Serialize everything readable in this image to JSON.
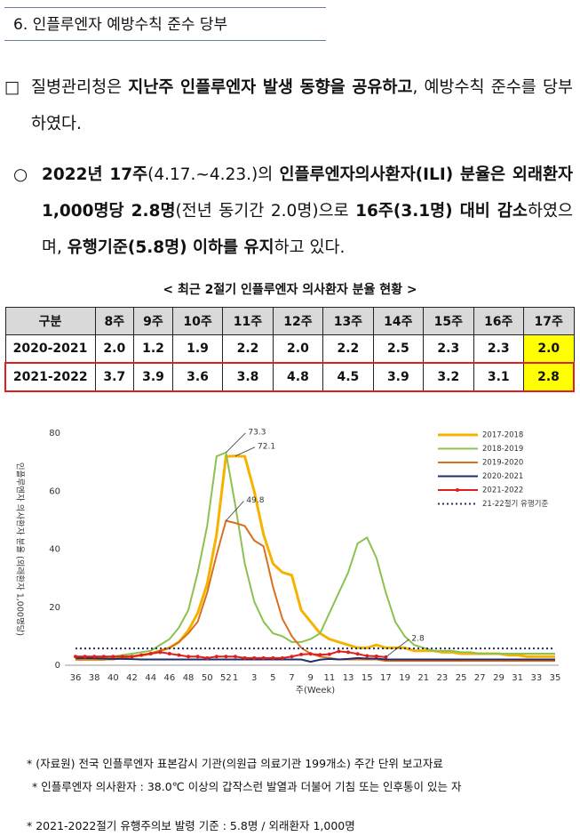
{
  "header": {
    "title": "6. 인플루엔자 예방수칙 준수 당부"
  },
  "paragraphs": [
    {
      "bullet": "□",
      "runs": [
        {
          "text": "질병관리청은 "
        },
        {
          "text": "지난주 인플루엔자 발생 동향을 공유하고",
          "bold": true
        },
        {
          "text": ", 예방수칙 준수를 당부하였다."
        }
      ]
    },
    {
      "bullet": "○",
      "runs": [
        {
          "text": "2022년 17주",
          "bold": true
        },
        {
          "text": "(4.17.~4.23.)"
        },
        {
          "text": "의 "
        },
        {
          "text": "인플루엔자의사환자(ILI) 분율은 외래환자 1,000명당 2.8명",
          "bold": true
        },
        {
          "text": "(전년 동기간 2.0명)"
        },
        {
          "text": "으로 "
        },
        {
          "text": "16주(3.1명) 대비 감소",
          "bold": true
        },
        {
          "text": "하였으며, "
        },
        {
          "text": "유행기준(5.8명) 이하를 유지",
          "bold": true
        },
        {
          "text": "하고 있다."
        }
      ]
    }
  ],
  "table": {
    "caption": "< 최근 2절기 인플루엔자 의사환자 분율 현황 >",
    "header": [
      "구분",
      "8주",
      "9주",
      "10주",
      "11주",
      "12주",
      "13주",
      "14주",
      "15주",
      "16주",
      "17주"
    ],
    "rows": [
      [
        "2020-2021",
        "2.0",
        "1.2",
        "1.9",
        "2.2",
        "2.0",
        "2.2",
        "2.5",
        "2.3",
        "2.3",
        "2.0"
      ],
      [
        "2021-2022",
        "3.7",
        "3.9",
        "3.6",
        "3.8",
        "4.8",
        "4.5",
        "3.9",
        "3.2",
        "3.1",
        "2.8"
      ]
    ]
  },
  "chart_data": {
    "type": "line",
    "ylabel": "인플루엔자 의사환자 분율 (외래환자 1,000명당)",
    "xlabel": "주(Week)",
    "categories": [
      36,
      null,
      38,
      null,
      40,
      null,
      42,
      null,
      44,
      null,
      46,
      null,
      48,
      null,
      50,
      null,
      52,
      1,
      null,
      3,
      null,
      5,
      null,
      7,
      null,
      9,
      null,
      11,
      null,
      13,
      null,
      15,
      null,
      17,
      null,
      19,
      null,
      21,
      null,
      23,
      null,
      25,
      null,
      27,
      null,
      29,
      null,
      31,
      null,
      33,
      null,
      35
    ],
    "ylim": [
      0,
      80
    ],
    "yticks": [
      0,
      20,
      40,
      60,
      80
    ],
    "series": [
      {
        "name": "2017-2018",
        "color": "#f5b300",
        "values": [
          2,
          2,
          2,
          2,
          2.5,
          3,
          3,
          3.5,
          4,
          5,
          6,
          8,
          12,
          18,
          28,
          45,
          72,
          72.1,
          72,
          60,
          45,
          35,
          32,
          31,
          19,
          15,
          11,
          9,
          8,
          7,
          6,
          6,
          7,
          6,
          6,
          6,
          5,
          5,
          5,
          4.5,
          4.5,
          4,
          4,
          4,
          4,
          4,
          3.5,
          3.5,
          3,
          3,
          3,
          3
        ]
      },
      {
        "name": "2018-2019",
        "color": "#8cc152",
        "values": [
          3,
          3,
          3,
          3,
          3,
          3.5,
          4,
          4.5,
          5,
          7,
          9,
          13,
          19,
          32,
          48,
          72,
          73.3,
          55,
          35,
          22,
          15,
          11,
          10,
          8,
          8,
          9,
          11,
          18,
          25,
          32,
          42,
          44,
          37,
          25,
          15,
          10,
          7,
          6,
          5,
          5,
          5,
          4.5,
          4.5,
          4,
          4,
          4,
          4,
          4,
          4,
          4,
          4,
          4
        ]
      },
      {
        "name": "2019-2020",
        "color": "#d9701f",
        "values": [
          2,
          2,
          2,
          2,
          2,
          2.5,
          3,
          3.5,
          4,
          5,
          6,
          8,
          11,
          15,
          25,
          38,
          49.8,
          49,
          48,
          43,
          41,
          27,
          16,
          10,
          6,
          4,
          3,
          2.5,
          2,
          2,
          2,
          2,
          2,
          1.5,
          1.5,
          1.5,
          1.5,
          1.5,
          1.5,
          1.5,
          1.5,
          1.5,
          1.5,
          1.5,
          1.5,
          1.5,
          1.5,
          1.5,
          1.5,
          1.5,
          1.5,
          1.5
        ]
      },
      {
        "name": "2020-2021",
        "color": "#1f2f6b",
        "values": [
          2.5,
          2.5,
          2.4,
          2.3,
          2.2,
          2.2,
          2.1,
          2,
          2,
          2,
          2,
          2,
          2,
          2,
          2,
          2,
          2,
          2,
          2,
          2,
          2,
          2,
          2,
          2,
          2.0,
          1.2,
          1.9,
          2.2,
          2.0,
          2.2,
          2.5,
          2.3,
          2.3,
          2.0,
          2,
          2,
          2,
          2,
          2,
          2,
          2,
          2,
          2,
          2,
          2,
          2,
          2,
          2,
          2,
          2,
          2,
          2
        ]
      },
      {
        "name": "2021-2022",
        "color": "#e02020",
        "marker": true,
        "values": [
          3,
          3,
          3,
          3,
          3,
          3,
          3,
          3.5,
          4,
          4.5,
          4,
          3.5,
          3,
          3,
          2.5,
          3,
          3,
          3,
          2.5,
          2.5,
          2.5,
          2.5,
          2.5,
          3,
          3.7,
          3.9,
          3.6,
          3.8,
          4.8,
          4.5,
          3.9,
          3.2,
          3.1,
          2.8,
          null,
          null,
          null,
          null,
          null,
          null,
          null,
          null,
          null,
          null,
          null,
          null,
          null,
          null,
          null,
          null,
          null,
          null
        ]
      },
      {
        "name": "21-22절기 유행기준",
        "color": "#1f2f6b",
        "dash": "dotted",
        "values": [
          5.8,
          5.8,
          5.8,
          5.8,
          5.8,
          5.8,
          5.8,
          5.8,
          5.8,
          5.8,
          5.8,
          5.8,
          5.8,
          5.8,
          5.8,
          5.8,
          5.8,
          5.8,
          5.8,
          5.8,
          5.8,
          5.8,
          5.8,
          5.8,
          5.8,
          5.8,
          5.8,
          5.8,
          5.8,
          5.8,
          5.8,
          5.8,
          5.8,
          5.8,
          5.8,
          5.8,
          5.8,
          5.8,
          5.8,
          5.8,
          5.8,
          5.8,
          5.8,
          5.8,
          5.8,
          5.8,
          5.8,
          5.8,
          5.8,
          5.8,
          5.8,
          5.8
        ]
      }
    ],
    "annotations": [
      "73.3",
      "72.1",
      "49.8",
      "2.8"
    ]
  },
  "footnotes": [
    "* (자료원) 전국 인플루엔자 표본감시 기관(의원급 의료기관 199개소) 주간 단위 보고자료",
    "* 인플루엔자 의사환자 : 38.0℃ 이상의 갑작스런 발열과 더불어 기침 또는 인후통이 있는 자",
    "* 2021-2022절기 유행주의보 발령 기준 : 5.8명 / 외래환자 1,000명"
  ]
}
